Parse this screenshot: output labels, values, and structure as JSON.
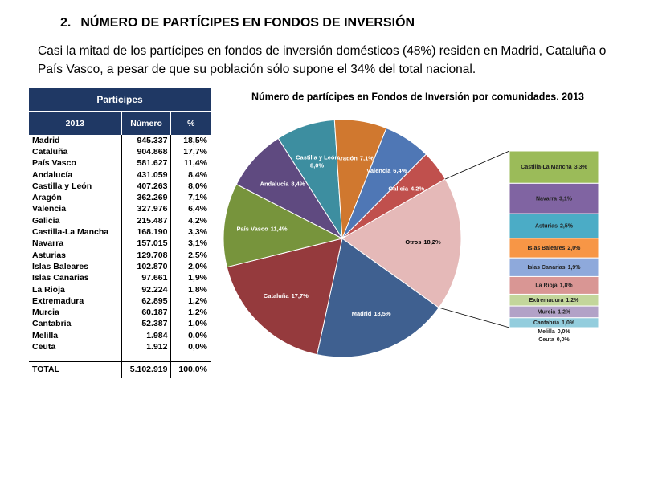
{
  "section": {
    "number": "2.",
    "title": "NÚMERO DE PARTÍCIPES EN FONDOS DE INVERSIÓN"
  },
  "intro": "Casi la mitad de los partícipes en fondos de inversión domésticos (48%) residen en Madrid, Cataluña o País Vasco, a pesar de que su población sólo supone el 34% del total nacional.",
  "table": {
    "title": "Partícipes",
    "columns": [
      "2013",
      "Número",
      "%"
    ],
    "rows": [
      [
        "Madrid",
        "945.337",
        "18,5%"
      ],
      [
        "Cataluña",
        "904.868",
        "17,7%"
      ],
      [
        "País Vasco",
        "581.627",
        "11,4%"
      ],
      [
        "Andalucía",
        "431.059",
        "8,4%"
      ],
      [
        "Castilla y León",
        "407.263",
        "8,0%"
      ],
      [
        "Aragón",
        "362.269",
        "7,1%"
      ],
      [
        "Valencia",
        "327.976",
        "6,4%"
      ],
      [
        "Galicia",
        "215.487",
        "4,2%"
      ],
      [
        "Castilla-La Mancha",
        "168.190",
        "3,3%"
      ],
      [
        "Navarra",
        "157.015",
        "3,1%"
      ],
      [
        "Asturias",
        "129.708",
        "2,5%"
      ],
      [
        "Islas Baleares",
        "102.870",
        "2,0%"
      ],
      [
        "Islas Canarias",
        "97.661",
        "1,9%"
      ],
      [
        "La Rioja",
        "92.224",
        "1,8%"
      ],
      [
        "Extremadura",
        "62.895",
        "1,2%"
      ],
      [
        "Murcia",
        "60.187",
        "1,2%"
      ],
      [
        "Cantabria",
        "52.387",
        "1,0%"
      ],
      [
        "Melilla",
        "1.984",
        "0,0%"
      ],
      [
        "Ceuta",
        "1.912",
        "0,0%"
      ]
    ],
    "total": [
      "TOTAL",
      "5.102.919",
      "100,0%"
    ]
  },
  "chart_data": {
    "type": "pie",
    "title": "Número de partícipes en Fondos de Inversión por comunidades. 2013",
    "categories": [
      "Madrid",
      "Cataluña",
      "País Vasco",
      "Andalucía",
      "Castilla y León",
      "Aragón",
      "Valencia",
      "Galicia",
      "Otros"
    ],
    "values": [
      18.5,
      17.7,
      11.4,
      8.4,
      8.0,
      7.1,
      6.4,
      4.2,
      18.2
    ],
    "value_labels": [
      "18,5%",
      "17,7%",
      "11,4%",
      "8,4%",
      "8,0%",
      "7,1%",
      "6,4%",
      "4,2%",
      "18,2%"
    ],
    "colors": [
      "#3f6090",
      "#953a3d",
      "#77943c",
      "#5f4a80",
      "#3d8ea0",
      "#d0782f",
      "#4f77b5",
      "#c0504d",
      "#e5b9b8"
    ],
    "breakout": {
      "categories": [
        "Castilla-La Mancha",
        "Navarra",
        "Asturias",
        "Islas Baleares",
        "Islas Canarias",
        "La Rioja",
        "Extremadura",
        "Murcia",
        "Cantabria",
        "Melilla",
        "Ceuta"
      ],
      "values": [
        3.3,
        3.1,
        2.5,
        2.0,
        1.9,
        1.8,
        1.2,
        1.2,
        1.0,
        0.0,
        0.0
      ],
      "value_labels": [
        "3,3%",
        "3,1%",
        "2,5%",
        "2,0%",
        "1,9%",
        "1,8%",
        "1,2%",
        "1,2%",
        "1,0%",
        "0,0%",
        "0,0%"
      ],
      "colors": [
        "#9bbb59",
        "#8064a2",
        "#4bacc6",
        "#f79646",
        "#8ea9db",
        "#d99694",
        "#c3d69b",
        "#b2a2c7",
        "#93cddd",
        "#b7b7b7",
        "#b7b7b7"
      ]
    }
  }
}
